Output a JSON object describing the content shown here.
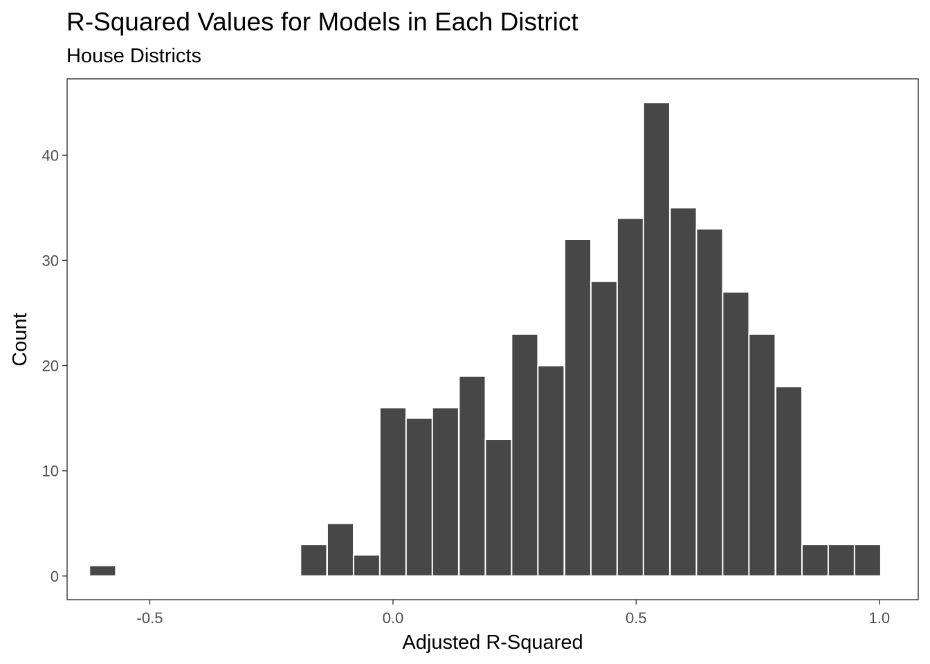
{
  "chart_data": {
    "type": "bar",
    "title": "R-Squared Values for Models in Each District",
    "subtitle": "House Districts",
    "xlabel": "Adjusted R-Squared",
    "ylabel": "Count",
    "xlim": [
      -0.67,
      1.08
    ],
    "ylim": [
      -2.25,
      47.25
    ],
    "x_ticks": [
      -0.5,
      0.0,
      0.5,
      1.0
    ],
    "x_tick_labels": [
      "-0.5",
      "0.0",
      "0.5",
      "1.0"
    ],
    "y_ticks": [
      0,
      10,
      20,
      30,
      40
    ],
    "y_tick_labels": [
      "0",
      "10",
      "20",
      "30",
      "40"
    ],
    "bin_width": 0.0542,
    "bins": [
      {
        "center": -0.597,
        "count": 1
      },
      {
        "center": -0.163,
        "count": 3
      },
      {
        "center": -0.108,
        "count": 5
      },
      {
        "center": -0.054,
        "count": 2
      },
      {
        "center": 0.0,
        "count": 16
      },
      {
        "center": 0.054,
        "count": 15
      },
      {
        "center": 0.108,
        "count": 16
      },
      {
        "center": 0.163,
        "count": 19
      },
      {
        "center": 0.217,
        "count": 13
      },
      {
        "center": 0.271,
        "count": 23
      },
      {
        "center": 0.325,
        "count": 20
      },
      {
        "center": 0.38,
        "count": 32
      },
      {
        "center": 0.434,
        "count": 28
      },
      {
        "center": 0.488,
        "count": 34
      },
      {
        "center": 0.542,
        "count": 45
      },
      {
        "center": 0.597,
        "count": 35
      },
      {
        "center": 0.651,
        "count": 33
      },
      {
        "center": 0.705,
        "count": 27
      },
      {
        "center": 0.759,
        "count": 23
      },
      {
        "center": 0.814,
        "count": 18
      },
      {
        "center": 0.868,
        "count": 3
      },
      {
        "center": 0.922,
        "count": 3
      },
      {
        "center": 0.976,
        "count": 3
      }
    ],
    "grid": false,
    "legend": "none"
  },
  "colors": {
    "bar_fill": "#474747",
    "bar_edge": "#ffffff",
    "panel_border": "#333333",
    "tick_text": "#4d4d4d",
    "text": "#000000"
  }
}
